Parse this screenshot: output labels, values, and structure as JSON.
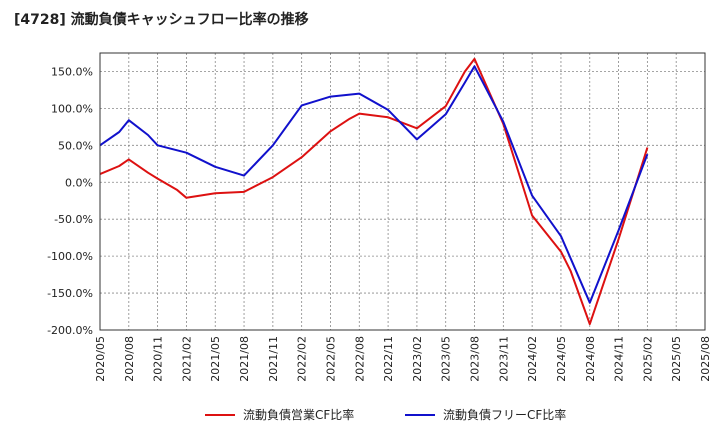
{
  "chart_data": {
    "type": "line",
    "title": "[4728]  流動負債キャッシュフロー比率の推移",
    "xlabel": "",
    "ylabel": "",
    "ylim": [
      -200,
      175
    ],
    "y_ticks": [
      150,
      100,
      50,
      0,
      -50,
      -100,
      -150,
      -200
    ],
    "y_tick_labels": [
      "150.0%",
      "100.0%",
      "50.0%",
      "0.0%",
      "-50.0%",
      "-100.0%",
      "-150.0%",
      "-200.0%"
    ],
    "x_tick_labels": [
      "2020/05",
      "2020/08",
      "2020/11",
      "2021/02",
      "2021/05",
      "2021/08",
      "2021/11",
      "2022/02",
      "2022/05",
      "2022/08",
      "2022/11",
      "2023/02",
      "2023/05",
      "2023/08",
      "2023/11",
      "2024/02",
      "2024/05",
      "2024/08",
      "2024/11",
      "2025/02",
      "2025/05",
      "2025/08"
    ],
    "grid": true,
    "legend_position": "bottom",
    "series": [
      {
        "name": "流動負債営業CF比率",
        "color": "#dd1111",
        "points": [
          [
            "2020/05",
            11
          ],
          [
            "2020/07",
            22
          ],
          [
            "2020/08",
            31
          ],
          [
            "2020/10",
            13
          ],
          [
            "2020/11",
            5
          ],
          [
            "2021/01",
            -10
          ],
          [
            "2021/02",
            -21
          ],
          [
            "2021/05",
            -15
          ],
          [
            "2021/08",
            -13
          ],
          [
            "2021/11",
            7
          ],
          [
            "2022/02",
            34
          ],
          [
            "2022/05",
            69
          ],
          [
            "2022/07",
            86
          ],
          [
            "2022/08",
            93
          ],
          [
            "2022/11",
            88
          ],
          [
            "2023/02",
            73
          ],
          [
            "2023/05",
            103
          ],
          [
            "2023/07",
            150
          ],
          [
            "2023/08",
            167
          ],
          [
            "2023/11",
            79
          ],
          [
            "2024/02",
            -45
          ],
          [
            "2024/05",
            -94
          ],
          [
            "2024/06",
            -120
          ],
          [
            "2024/08",
            -192
          ],
          [
            "2024/11",
            -77
          ],
          [
            "2025/02",
            47
          ]
        ]
      },
      {
        "name": "流動負債フリーCF比率",
        "color": "#1111cc",
        "points": [
          [
            "2020/05",
            50
          ],
          [
            "2020/07",
            68
          ],
          [
            "2020/08",
            84
          ],
          [
            "2020/10",
            64
          ],
          [
            "2020/11",
            50
          ],
          [
            "2021/02",
            40
          ],
          [
            "2021/05",
            21
          ],
          [
            "2021/08",
            9
          ],
          [
            "2021/11",
            50
          ],
          [
            "2022/02",
            104
          ],
          [
            "2022/05",
            116
          ],
          [
            "2022/08",
            120
          ],
          [
            "2022/11",
            98
          ],
          [
            "2023/02",
            58
          ],
          [
            "2023/05",
            92
          ],
          [
            "2023/07",
            135
          ],
          [
            "2023/08",
            157
          ],
          [
            "2023/11",
            82
          ],
          [
            "2024/02",
            -18
          ],
          [
            "2024/05",
            -73
          ],
          [
            "2024/06",
            -103
          ],
          [
            "2024/08",
            -163
          ],
          [
            "2024/11",
            -65
          ],
          [
            "2025/02",
            38
          ]
        ]
      }
    ]
  }
}
